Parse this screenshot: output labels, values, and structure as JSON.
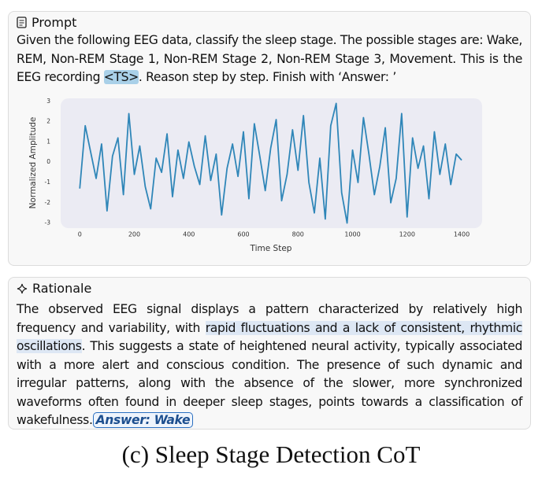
{
  "prompt": {
    "title": "Prompt",
    "text_before": "Given the following EEG data, classify the sleep stage. The possible stages are: Wake, REM, Non-REM Stage 1, Non-REM Stage 2, Non-REM Stage 3, Movement. This is the EEG recording ",
    "highlight": "<TS>",
    "text_after": ". Reason step by step. Finish with ‘Answer: ’"
  },
  "chart_data": {
    "type": "line",
    "x_label": "Time Step",
    "y_label": "Normalized Amplitude",
    "color": "#2f86b8",
    "x": [
      0,
      20,
      40,
      60,
      80,
      100,
      120,
      140,
      160,
      180,
      200,
      220,
      240,
      260,
      280,
      300,
      320,
      340,
      360,
      380,
      400,
      420,
      440,
      460,
      480,
      500,
      520,
      540,
      560,
      580,
      600,
      620,
      640,
      660,
      680,
      700,
      720,
      740,
      760,
      780,
      800,
      820,
      840,
      860,
      880,
      900,
      920,
      940,
      960,
      980,
      1000,
      1020,
      1040,
      1060,
      1080,
      1100,
      1120,
      1140,
      1160,
      1180,
      1200,
      1220,
      1240,
      1260,
      1280,
      1300,
      1320,
      1340,
      1360,
      1380,
      1400
    ],
    "values": [
      -1.3,
      1.8,
      0.5,
      -0.8,
      0.9,
      -2.4,
      0.3,
      1.2,
      -1.6,
      2.4,
      -0.6,
      0.8,
      -1.2,
      -2.3,
      0.2,
      -0.5,
      1.4,
      -1.7,
      0.6,
      -0.8,
      1.0,
      -0.2,
      -1.1,
      1.3,
      -0.9,
      0.4,
      -2.6,
      -0.3,
      0.9,
      -0.7,
      1.5,
      -1.8,
      1.9,
      0.3,
      -1.4,
      0.7,
      2.1,
      -1.9,
      -0.6,
      1.6,
      -0.4,
      2.3,
      -1.0,
      -2.5,
      0.2,
      -2.8,
      1.8,
      2.9,
      -1.5,
      -3.0,
      0.6,
      -1.0,
      2.2,
      0.4,
      -1.6,
      -0.2,
      1.7,
      -2.0,
      -0.8,
      2.4,
      -2.7,
      1.2,
      -0.3,
      0.8,
      -1.8,
      1.5,
      -0.6,
      0.9,
      -1.1,
      0.4,
      0.1
    ],
    "xlim": [
      -70,
      1475
    ],
    "ylim": [
      -3.25,
      3.15
    ],
    "xticks": [
      0,
      200,
      400,
      600,
      800,
      1000,
      1200,
      1400
    ],
    "yticks": [
      -3,
      -2,
      -1,
      0,
      1,
      2,
      3
    ]
  },
  "rationale": {
    "title": "Rationale",
    "text_before": "The observed EEG signal displays a pattern characterized by relatively high frequency and variability, with ",
    "highlight": "rapid fluctuations and a lack of consistent, rhythmic oscillations",
    "text_after": ". This suggests a state of heightened neural activity, typically associated with a more alert and conscious condition. The presence of such dynamic and irregular patterns, along with the absence of the slower, more synchronized waveforms often found in deeper sleep stages, points towards a classification of wakefulness.",
    "answer": "Answer: Wake"
  },
  "caption": "(c) Sleep Stage Detection CoT"
}
